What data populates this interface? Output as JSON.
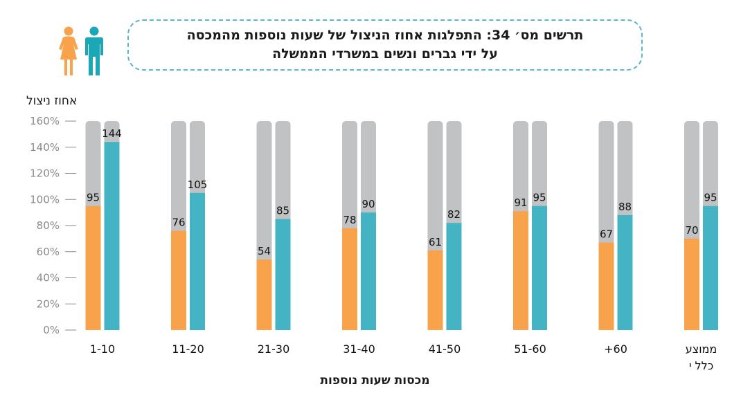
{
  "title": {
    "line1": "תרשים מס׳ 34: התפלגות אחוז הניצול של שעות נוספות מהמכסה",
    "line2": "על ידי גברים ונשים במשרדי הממשלה"
  },
  "icons": [
    "woman-icon",
    "man-icon"
  ],
  "colors": {
    "women": "#f9a24c",
    "men": "#44b4c4",
    "track": "#c1c2c4",
    "axis_text": "#8a8a8a"
  },
  "chart_data": {
    "type": "bar",
    "ylabel": "אחוז ניצול",
    "xlabel": "מכסות שעות נוספות",
    "ylim": [
      0,
      160
    ],
    "yticks": [
      "0%",
      "20%",
      "40%",
      "60%",
      "80%",
      "100%",
      "120%",
      "140%",
      "160%"
    ],
    "ytick_values": [
      0,
      20,
      40,
      60,
      80,
      100,
      120,
      140,
      160
    ],
    "categories": [
      "1-10",
      "11-20",
      "21-30",
      "31-40",
      "41-50",
      "51-60",
      "+60",
      "ממוצע כללי"
    ],
    "category_lines": [
      [
        "1-10"
      ],
      [
        "11-20"
      ],
      [
        "21-30"
      ],
      [
        "31-40"
      ],
      [
        "41-50"
      ],
      [
        "51-60"
      ],
      [
        "+60"
      ],
      [
        "ממוצע",
        "כלל י"
      ]
    ],
    "series": [
      {
        "key": "women",
        "values": [
          95,
          76,
          54,
          78,
          61,
          91,
          67,
          70
        ]
      },
      {
        "key": "men",
        "values": [
          144,
          105,
          85,
          90,
          82,
          95,
          88,
          95
        ]
      }
    ],
    "grid": false
  }
}
